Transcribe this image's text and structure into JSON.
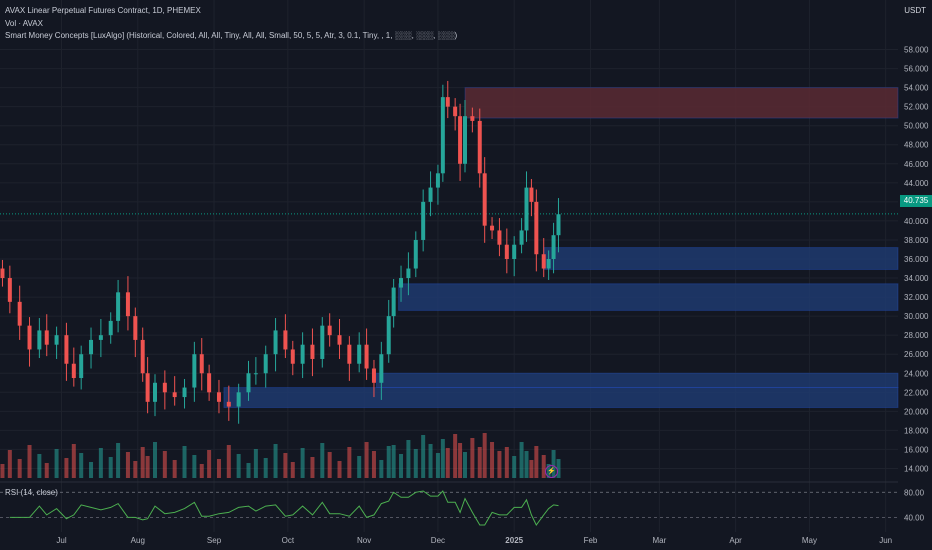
{
  "legend": {
    "title": "AVAX Linear Perpetual Futures Contract, 1D, PHEMEX",
    "vol": "Vol · AVAX",
    "indicator": "Smart Money Concepts [LuxAlgo] (Historical, Colored, All, All, Tiny, All, All, Small, 50, 5, 5, Atr, 3, 0.1, Tiny, , 1, ░░░, ░░░, ░░░)"
  },
  "currency": "USDT",
  "last_price": "40.735",
  "rsi_label": "RSI (14, close)",
  "colors": {
    "background": "#131722",
    "up": "#26a69a",
    "down": "#ef5350",
    "rsi": "#4caf50",
    "bull_zone": "#1e3a6e",
    "bear_zone": "#5a2a33"
  },
  "chart_data": {
    "type": "candlestick",
    "y_ticks": [
      "58.000",
      "56.000",
      "54.000",
      "52.000",
      "50.000",
      "48.000",
      "46.000",
      "44.000",
      "42.000",
      "40.000",
      "38.000",
      "36.000",
      "34.000",
      "32.000",
      "30.000",
      "28.000",
      "26.000",
      "24.000",
      "22.000",
      "20.000",
      "18.000",
      "16.000",
      "14.000"
    ],
    "x_ticks": [
      "Jul",
      "Aug",
      "Sep",
      "Oct",
      "Nov",
      "Dec",
      "2025",
      "Feb",
      "Mar",
      "Apr",
      "May",
      "Jun"
    ],
    "rsi_ticks": [
      "80.00",
      "40.00"
    ],
    "ylim": [
      13,
      59
    ],
    "xlim": [
      "2024-06-06",
      "2025-06-06"
    ],
    "closes": [
      [
        "2024-06-07",
        34.0
      ],
      [
        "2024-06-10",
        31.5
      ],
      [
        "2024-06-14",
        29.0
      ],
      [
        "2024-06-18",
        26.5
      ],
      [
        "2024-06-22",
        28.5
      ],
      [
        "2024-06-25",
        27.0
      ],
      [
        "2024-06-29",
        28.0
      ],
      [
        "2024-07-03",
        25.0
      ],
      [
        "2024-07-06",
        23.5
      ],
      [
        "2024-07-09",
        26.0
      ],
      [
        "2024-07-13",
        27.5
      ],
      [
        "2024-07-17",
        28.0
      ],
      [
        "2024-07-21",
        29.5
      ],
      [
        "2024-07-24",
        32.5
      ],
      [
        "2024-07-28",
        30.0
      ],
      [
        "2024-07-31",
        27.5
      ],
      [
        "2024-08-03",
        24.0
      ],
      [
        "2024-08-05",
        21.0
      ],
      [
        "2024-08-08",
        23.0
      ],
      [
        "2024-08-12",
        22.0
      ],
      [
        "2024-08-16",
        21.5
      ],
      [
        "2024-08-20",
        22.5
      ],
      [
        "2024-08-24",
        26.0
      ],
      [
        "2024-08-27",
        24.0
      ],
      [
        "2024-08-30",
        22.0
      ],
      [
        "2024-09-03",
        21.0
      ],
      [
        "2024-09-07",
        20.5
      ],
      [
        "2024-09-11",
        22.0
      ],
      [
        "2024-09-15",
        24.0
      ],
      [
        "2024-09-18",
        24.0
      ],
      [
        "2024-09-22",
        26.0
      ],
      [
        "2024-09-26",
        28.5
      ],
      [
        "2024-09-30",
        26.5
      ],
      [
        "2024-10-03",
        25.0
      ],
      [
        "2024-10-07",
        27.0
      ],
      [
        "2024-10-11",
        25.5
      ],
      [
        "2024-10-15",
        29.0
      ],
      [
        "2024-10-18",
        28.0
      ],
      [
        "2024-10-22",
        27.0
      ],
      [
        "2024-10-26",
        25.0
      ],
      [
        "2024-10-30",
        27.0
      ],
      [
        "2024-11-02",
        24.5
      ],
      [
        "2024-11-05",
        23.0
      ],
      [
        "2024-11-08",
        26.0
      ],
      [
        "2024-11-11",
        30.0
      ],
      [
        "2024-11-13",
        33.0
      ],
      [
        "2024-11-16",
        34.0
      ],
      [
        "2024-11-19",
        35.0
      ],
      [
        "2024-11-22",
        38.0
      ],
      [
        "2024-11-25",
        42.0
      ],
      [
        "2024-11-28",
        43.5
      ],
      [
        "2024-12-01",
        45.0
      ],
      [
        "2024-12-03",
        53.0
      ],
      [
        "2024-12-05",
        52.0
      ],
      [
        "2024-12-08",
        51.0
      ],
      [
        "2024-12-10",
        46.0
      ],
      [
        "2024-12-12",
        51.0
      ],
      [
        "2024-12-15",
        50.5
      ],
      [
        "2024-12-18",
        45.0
      ],
      [
        "2024-12-20",
        39.5
      ],
      [
        "2024-12-23",
        39.0
      ],
      [
        "2024-12-26",
        37.5
      ],
      [
        "2024-12-29",
        36.0
      ],
      [
        "2025-01-01",
        37.5
      ],
      [
        "2025-01-04",
        39.0
      ],
      [
        "2025-01-06",
        43.5
      ],
      [
        "2025-01-08",
        42.0
      ],
      [
        "2025-01-10",
        36.5
      ],
      [
        "2025-01-13",
        35.0
      ],
      [
        "2025-01-15",
        36.0
      ],
      [
        "2025-01-17",
        38.5
      ],
      [
        "2025-01-19",
        40.7
      ]
    ]
  }
}
